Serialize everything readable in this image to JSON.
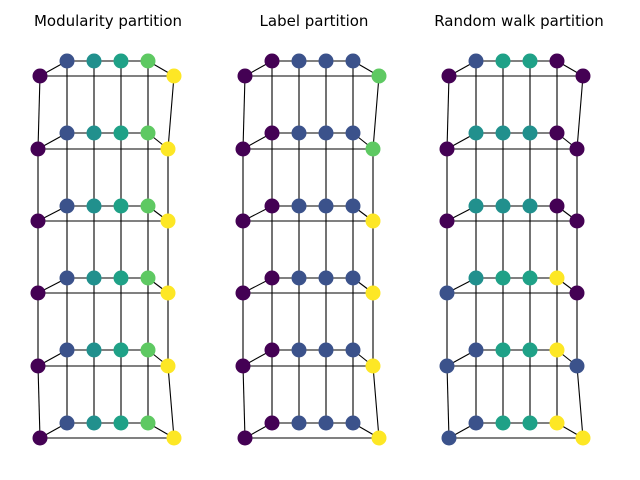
{
  "figure": {
    "panels": [
      {
        "title": "Modularity partition",
        "communities": [
          0,
          1,
          2,
          3,
          4,
          5,
          0,
          1,
          2,
          3,
          4,
          5,
          0,
          1,
          2,
          3,
          4,
          5,
          0,
          1,
          2,
          3,
          4,
          5,
          0,
          1,
          2,
          3,
          4,
          5,
          0,
          1,
          2,
          3,
          4,
          5
        ]
      },
      {
        "title": "Label partition",
        "communities": [
          0,
          0,
          1,
          1,
          1,
          4,
          0,
          0,
          1,
          1,
          1,
          4,
          0,
          0,
          1,
          1,
          1,
          5,
          0,
          0,
          1,
          1,
          1,
          5,
          0,
          0,
          1,
          1,
          1,
          5,
          0,
          0,
          1,
          1,
          1,
          5
        ]
      },
      {
        "title": "Random walk partition",
        "communities": [
          0,
          1,
          3,
          3,
          0,
          0,
          0,
          2,
          2,
          2,
          0,
          0,
          0,
          2,
          2,
          2,
          0,
          0,
          1,
          2,
          3,
          3,
          5,
          0,
          1,
          1,
          3,
          3,
          5,
          1,
          1,
          1,
          3,
          3,
          5,
          5
        ]
      }
    ],
    "community_colors": [
      "#440154",
      "#3b528b",
      "#21908d",
      "#1fa187",
      "#5ec962",
      "#fde725"
    ]
  }
}
